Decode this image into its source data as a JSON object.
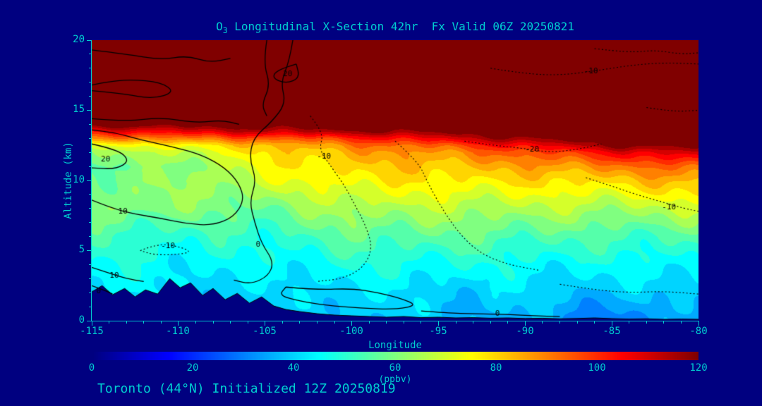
{
  "title": {
    "prefix": "O",
    "sub": "3",
    "rest": " Longitudinal X-Section 42hr  Fx Valid 06Z 20250821"
  },
  "footer": "Toronto (44°N) Initialized 12Z 20250819",
  "axes": {
    "x_label": "Longitude",
    "y_label": "Altitude (km)",
    "x_ticks": [
      -115,
      -110,
      -105,
      -100,
      -95,
      -90,
      -85,
      -80
    ],
    "y_ticks": [
      0,
      5,
      10,
      15,
      20
    ]
  },
  "colorbar": {
    "label": "(ppbv)",
    "ticks": [
      0,
      20,
      40,
      60,
      80,
      100,
      120
    ],
    "min": 0,
    "max": 120,
    "scale": "jet"
  },
  "colors": {
    "background": "#000080",
    "text": "#00CED1",
    "contour": "#000000"
  },
  "chart_data": {
    "type": "heatmap",
    "title": "O3 Longitudinal X-Section 42hr  Fx Valid 06Z 20250821",
    "subtitle": "Toronto (44N) Initialized 12Z 20250819",
    "xlabel": "Longitude",
    "ylabel": "Altitude (km)",
    "xlim": [
      -115,
      -80
    ],
    "ylim": [
      0,
      20
    ],
    "units": "ppbv",
    "clim": [
      0,
      120
    ],
    "color_scale": "jet",
    "fill_quantize_step": 5,
    "grid": {
      "lons": [
        -115,
        -110,
        -105,
        -100,
        -95,
        -90,
        -85,
        -80
      ],
      "alts": [
        0,
        2,
        4,
        6,
        8,
        10,
        11,
        12,
        12.5,
        13,
        13.5,
        14,
        15,
        20
      ],
      "values": [
        [
          40,
          40,
          38,
          40,
          38,
          36,
          28,
          36
        ],
        [
          42,
          42,
          40,
          42,
          40,
          40,
          38,
          40
        ],
        [
          46,
          45,
          44,
          48,
          47,
          46,
          45,
          46
        ],
        [
          52,
          50,
          50,
          56,
          56,
          55,
          53,
          54
        ],
        [
          62,
          60,
          58,
          66,
          66,
          66,
          65,
          68
        ],
        [
          60,
          62,
          70,
          76,
          77,
          78,
          80,
          85
        ],
        [
          58,
          60,
          74,
          80,
          82,
          85,
          90,
          95
        ],
        [
          62,
          68,
          78,
          85,
          88,
          95,
          105,
          112
        ],
        [
          70,
          76,
          82,
          90,
          95,
          105,
          118,
          122
        ],
        [
          88,
          92,
          95,
          100,
          108,
          118,
          126,
          128
        ],
        [
          104,
          108,
          112,
          116,
          120,
          126,
          130,
          132
        ],
        [
          122,
          122,
          124,
          126,
          128,
          130,
          133,
          134
        ],
        [
          131,
          131,
          132,
          133,
          134,
          135,
          135,
          135
        ],
        [
          135,
          135,
          135,
          135,
          135,
          135,
          135,
          135
        ]
      ]
    },
    "terrain_km": [
      [
        -115,
        2.05
      ],
      [
        -114.4,
        2.5
      ],
      [
        -113.8,
        1.85
      ],
      [
        -113.1,
        2.3
      ],
      [
        -112.5,
        1.7
      ],
      [
        -111.9,
        2.2
      ],
      [
        -111.2,
        1.9
      ],
      [
        -110.5,
        3.0
      ],
      [
        -109.9,
        2.35
      ],
      [
        -109.3,
        2.7
      ],
      [
        -108.6,
        1.8
      ],
      [
        -108.0,
        2.3
      ],
      [
        -107.3,
        1.5
      ],
      [
        -106.6,
        1.95
      ],
      [
        -105.9,
        1.25
      ],
      [
        -105.2,
        1.7
      ],
      [
        -104.5,
        1.05
      ],
      [
        -103.8,
        0.8
      ],
      [
        -103,
        0.65
      ],
      [
        -102,
        0.5
      ],
      [
        -101,
        0.4
      ],
      [
        -100,
        0.35
      ],
      [
        -99,
        0.3
      ],
      [
        -98,
        0.25
      ],
      [
        -97,
        0.3
      ],
      [
        -96,
        0.22
      ],
      [
        -95,
        0.25
      ],
      [
        -94,
        0.2
      ],
      [
        -93,
        0.22
      ],
      [
        -92,
        0.18
      ],
      [
        -91,
        0.2
      ],
      [
        -90,
        0.16
      ],
      [
        -89,
        0.18
      ],
      [
        -88,
        0.14
      ],
      [
        -87,
        0.16
      ],
      [
        -86,
        0.2
      ],
      [
        -85,
        0.15
      ],
      [
        -84,
        0.12
      ],
      [
        -83,
        0.14
      ],
      [
        -82,
        0.1
      ],
      [
        -81,
        0.12
      ],
      [
        -80,
        0.1
      ]
    ],
    "contour_overlay": {
      "labels_seen": [
        "-20",
        "-10",
        "0",
        "10",
        "20"
      ],
      "solid_means": "positive or zero",
      "dotted_means": "negative",
      "lines": [
        {
          "style": "solid",
          "label": "",
          "label_at": null,
          "points": [
            [
              -115,
              19.3
            ],
            [
              -113,
              19.0
            ],
            [
              -111,
              18.6
            ],
            [
              -109.5,
              18.9
            ],
            [
              -108.2,
              18.4
            ],
            [
              -107.0,
              18.7
            ]
          ]
        },
        {
          "style": "solid",
          "label": "",
          "label_at": null,
          "points": [
            [
              -115,
              16.4
            ],
            [
              -113.2,
              16.2
            ],
            [
              -111.5,
              15.8
            ],
            [
              -110.2,
              16.3
            ],
            [
              -111.0,
              17.0
            ],
            [
              -112.8,
              17.2
            ],
            [
              -114.2,
              17.0
            ],
            [
              -115,
              16.8
            ]
          ]
        },
        {
          "style": "solid",
          "label": "",
          "label_at": null,
          "points": [
            [
              -115,
              14.4
            ],
            [
              -113,
              14.2
            ],
            [
              -111,
              14.5
            ],
            [
              -109,
              14.1
            ],
            [
              -107.5,
              14.3
            ],
            [
              -106.5,
              14.0
            ]
          ]
        },
        {
          "style": "solid",
          "label": "20",
          "label_at": [
            -103.7,
            17.6
          ],
          "points": [
            [
              -103.2,
              18.3
            ],
            [
              -104.3,
              17.9
            ],
            [
              -104.6,
              17.3
            ],
            [
              -103.8,
              16.9
            ],
            [
              -103.0,
              17.3
            ],
            [
              -103.2,
              18.3
            ]
          ]
        },
        {
          "style": "solid",
          "label": "",
          "label_at": null,
          "points": [
            [
              -104.9,
              20
            ],
            [
              -105.1,
              18.4
            ],
            [
              -104.7,
              16.8
            ],
            [
              -105.2,
              15.4
            ],
            [
              -104.9,
              14.6
            ]
          ]
        },
        {
          "style": "solid",
          "label": "0",
          "label_at": [
            -105.4,
            5.4
          ],
          "points": [
            [
              -103.4,
              20
            ],
            [
              -103.6,
              18.5
            ],
            [
              -104.1,
              17
            ],
            [
              -103.8,
              15.5
            ],
            [
              -104.6,
              14.2
            ],
            [
              -105.7,
              13.0
            ],
            [
              -105.9,
              11.5
            ],
            [
              -105.5,
              10.0
            ],
            [
              -105.9,
              8.5
            ],
            [
              -105.6,
              7.0
            ],
            [
              -105.2,
              5.5
            ],
            [
              -104.5,
              4.2
            ],
            [
              -104.8,
              3.2
            ],
            [
              -105.8,
              2.6
            ],
            [
              -106.8,
              2.9
            ]
          ]
        },
        {
          "style": "solid",
          "label": "20",
          "label_at": [
            -114.2,
            11.5
          ],
          "points": [
            [
              -115,
              12.6
            ],
            [
              -113.5,
              12.2
            ],
            [
              -112.8,
              11.4
            ],
            [
              -113.6,
              10.8
            ],
            [
              -115,
              10.9
            ]
          ]
        },
        {
          "style": "solid",
          "label": "10",
          "label_at": [
            -113.2,
            7.8
          ],
          "points": [
            [
              -115,
              8.6
            ],
            [
              -113.8,
              8.0
            ],
            [
              -112.5,
              7.6
            ],
            [
              -111,
              7.3
            ],
            [
              -109.5,
              6.9
            ],
            [
              -108,
              6.8
            ],
            [
              -106.8,
              7.4
            ],
            [
              -106.2,
              8.6
            ],
            [
              -106.5,
              9.8
            ],
            [
              -107.3,
              10.9
            ],
            [
              -108.6,
              11.8
            ],
            [
              -110.3,
              12.4
            ],
            [
              -112.2,
              12.9
            ],
            [
              -113.6,
              13.4
            ],
            [
              -115,
              13.6
            ]
          ]
        },
        {
          "style": "dotted",
          "label": "-10",
          "label_at": [
            -110.6,
            5.3
          ],
          "points": [
            [
              -112.2,
              5.0
            ],
            [
              -111.2,
              5.5
            ],
            [
              -110.0,
              5.3
            ],
            [
              -109.2,
              4.9
            ],
            [
              -110.2,
              4.7
            ],
            [
              -111.4,
              4.7
            ],
            [
              -112.2,
              5.0
            ]
          ]
        },
        {
          "style": "solid",
          "label": "10",
          "label_at": [
            -113.7,
            3.2
          ],
          "points": [
            [
              -115,
              3.8
            ],
            [
              -114,
              3.4
            ],
            [
              -113,
              3.0
            ],
            [
              -112,
              2.8
            ]
          ]
        },
        {
          "style": "solid",
          "label": "0",
          "label_at": [
            -114.6,
            2.1
          ],
          "points": [
            [
              -115,
              2.5
            ],
            [
              -114.3,
              2.2
            ],
            [
              -113.8,
              1.9
            ]
          ]
        },
        {
          "style": "solid",
          "label": "",
          "label_at": null,
          "points": [
            [
              -103.8,
              2.4
            ],
            [
              -102,
              2.2
            ],
            [
              -100,
              2.3
            ],
            [
              -98.5,
              2.0
            ],
            [
              -97.2,
              1.6
            ],
            [
              -96.2,
              1.1
            ],
            [
              -97.5,
              0.8
            ],
            [
              -99.5,
              0.9
            ],
            [
              -101.5,
              1.1
            ],
            [
              -103,
              1.4
            ],
            [
              -104.2,
              1.8
            ],
            [
              -103.8,
              2.4
            ]
          ]
        },
        {
          "style": "solid",
          "label": "0",
          "label_at": [
            -91.6,
            0.5
          ],
          "points": [
            [
              -96.0,
              0.7
            ],
            [
              -94.5,
              0.55
            ],
            [
              -93,
              0.5
            ],
            [
              -91,
              0.45
            ],
            [
              -89.5,
              0.35
            ],
            [
              -88,
              0.3
            ]
          ]
        },
        {
          "style": "dotted",
          "label": "-10",
          "label_at": [
            -101.6,
            11.7
          ],
          "points": [
            [
              -102.4,
              14.6
            ],
            [
              -101.6,
              13.4
            ],
            [
              -101.9,
              12.2
            ],
            [
              -101.2,
              11.0
            ],
            [
              -100.4,
              9.6
            ],
            [
              -99.8,
              8.2
            ],
            [
              -99.2,
              6.8
            ],
            [
              -98.8,
              5.2
            ],
            [
              -99.3,
              3.8
            ],
            [
              -100.5,
              3.0
            ],
            [
              -102.0,
              2.8
            ]
          ]
        },
        {
          "style": "dotted",
          "label": "",
          "label_at": null,
          "points": [
            [
              -97.5,
              12.8
            ],
            [
              -96.2,
              11.4
            ],
            [
              -95.6,
              9.8
            ],
            [
              -94.8,
              8.0
            ],
            [
              -93.8,
              6.2
            ],
            [
              -92.6,
              4.8
            ],
            [
              -91.0,
              4.0
            ],
            [
              -89.2,
              3.6
            ]
          ]
        },
        {
          "style": "dotted",
          "label": "-20",
          "label_at": [
            -89.6,
            12.2
          ],
          "points": [
            [
              -93.5,
              12.8
            ],
            [
              -91.8,
              12.5
            ],
            [
              -90.2,
              12.3
            ],
            [
              -88.6,
              12.0
            ],
            [
              -87.0,
              12.2
            ],
            [
              -85.6,
              12.6
            ]
          ]
        },
        {
          "style": "dotted",
          "label": "-10",
          "label_at": [
            -81.7,
            8.1
          ],
          "points": [
            [
              -86.5,
              10.2
            ],
            [
              -85.0,
              9.6
            ],
            [
              -83.6,
              9.0
            ],
            [
              -82.2,
              8.5
            ],
            [
              -80.8,
              8.0
            ],
            [
              -80,
              7.8
            ]
          ]
        },
        {
          "style": "dotted",
          "label": "-10",
          "label_at": [
            -86.2,
            17.8
          ],
          "points": [
            [
              -92,
              18.0
            ],
            [
              -90,
              17.6
            ],
            [
              -88,
              17.5
            ],
            [
              -86,
              17.8
            ],
            [
              -84,
              18.2
            ],
            [
              -82,
              18.4
            ],
            [
              -80,
              18.3
            ]
          ]
        },
        {
          "style": "dotted",
          "label": "",
          "label_at": null,
          "points": [
            [
              -86,
              19.4
            ],
            [
              -84,
              19.1
            ],
            [
              -82.5,
              19.3
            ],
            [
              -81,
              19.0
            ],
            [
              -80,
              19.1
            ]
          ]
        },
        {
          "style": "dotted",
          "label": "",
          "label_at": null,
          "points": [
            [
              -83,
              15.2
            ],
            [
              -81.5,
              14.9
            ],
            [
              -80,
              15.0
            ]
          ]
        },
        {
          "style": "dotted",
          "label": "",
          "label_at": null,
          "points": [
            [
              -88,
              2.6
            ],
            [
              -86,
              2.2
            ],
            [
              -84,
              2.0
            ],
            [
              -82,
              2.1
            ],
            [
              -80,
              1.9
            ]
          ]
        }
      ]
    }
  }
}
